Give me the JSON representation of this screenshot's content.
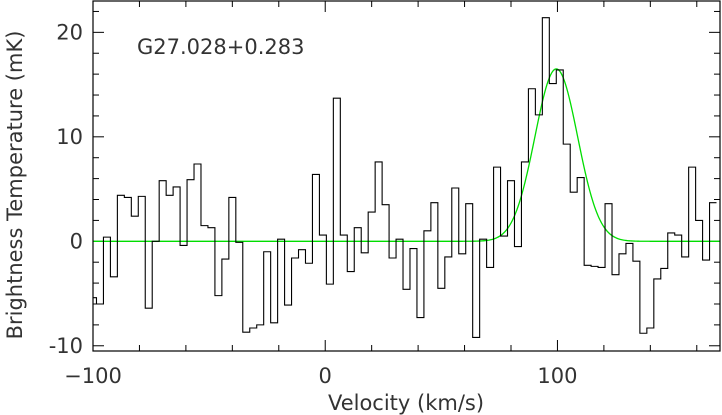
{
  "chart_data": {
    "type": "line",
    "annotation": "G27.028+0.283",
    "xlabel": "Velocity (km/s)",
    "ylabel": "Brightness Temperature (mK)",
    "xlim": [
      -100,
      170
    ],
    "ylim": [
      -10.5,
      23
    ],
    "x_ticks": [
      -100,
      0,
      100
    ],
    "y_ticks": [
      -10,
      0,
      10,
      20
    ],
    "grid": false,
    "colors": {
      "spectrum": "#000000",
      "fit": "#00dd00",
      "frame": "#000000",
      "text": "#333333"
    },
    "series": [
      {
        "style": "step",
        "x": [
          -100,
          -97,
          -94,
          -91,
          -88,
          -85,
          -82,
          -79,
          -76,
          -73,
          -70,
          -67,
          -64,
          -61,
          -58,
          -55,
          -52,
          -49,
          -46,
          -43,
          -40,
          -37,
          -34,
          -31,
          -28,
          -25,
          -22,
          -19,
          -16,
          -13,
          -10,
          -7,
          -4,
          -1,
          2,
          5,
          8,
          11,
          14,
          17,
          20,
          23,
          26,
          29,
          32,
          35,
          38,
          41,
          44,
          47,
          50,
          53,
          56,
          59,
          62,
          65,
          68,
          71,
          74,
          77,
          80,
          83,
          86,
          89,
          92,
          95,
          98,
          101,
          104,
          107,
          110,
          113,
          116,
          119,
          122,
          125,
          128,
          131,
          134,
          137,
          140,
          143,
          146,
          149,
          152,
          155,
          158,
          161,
          164,
          167
        ],
        "values": [
          -5.4,
          -6.0,
          0.4,
          -3.4,
          4.4,
          4.2,
          2.4,
          4.3,
          -6.4,
          0.0,
          5.8,
          4.4,
          5.2,
          -0.4,
          5.9,
          7.4,
          1.5,
          1.3,
          -5.2,
          -1.7,
          4.2,
          -0.1,
          -8.7,
          -8.3,
          -8.0,
          -1.0,
          -7.8,
          0.2,
          -6.1,
          -1.6,
          -0.8,
          -2.1,
          6.4,
          0.6,
          -4.1,
          13.7,
          0.6,
          -2.9,
          1.3,
          -1.1,
          2.8,
          7.6,
          3.5,
          -1.6,
          0.2,
          -4.6,
          -0.7,
          -7.3,
          1.0,
          3.7,
          -4.5,
          -1.5,
          5.1,
          -1.2,
          3.6,
          -9.2,
          0.2,
          -2.5,
          7.1,
          0.5,
          5.8,
          -0.5,
          7.6,
          14.6,
          12.1,
          21.4,
          15.1,
          16.4,
          9.3,
          4.7,
          6.1,
          -2.3,
          -2.4,
          -2.5,
          3.6,
          -3.2,
          -1.2,
          -0.2,
          -1.9,
          -8.8,
          -8.3,
          -3.6,
          -2.6,
          0.8,
          0.6,
          -1.5,
          7.1,
          2.0,
          -1.8,
          3.7
        ]
      },
      {
        "style": "gaussian-fit",
        "amplitude": 16.5,
        "center": 99.5,
        "sigma": 9.2,
        "baseline": 0
      }
    ]
  }
}
